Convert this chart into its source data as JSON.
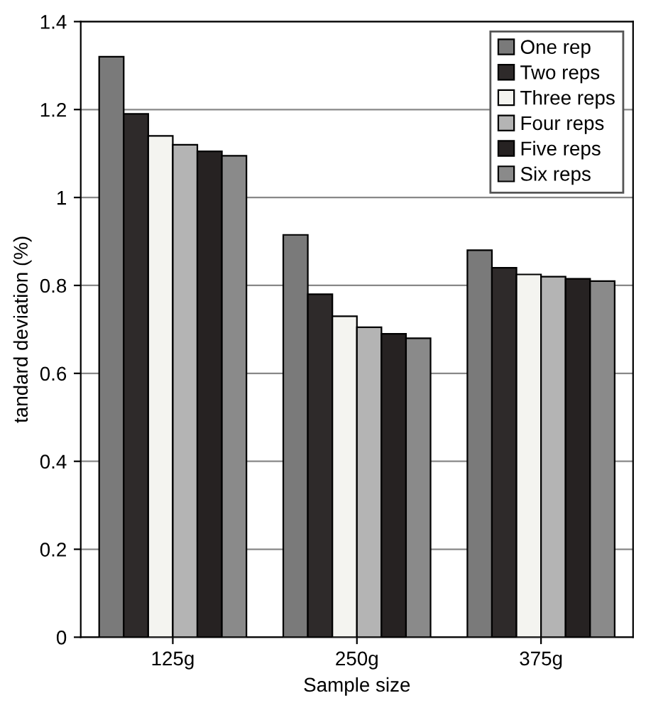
{
  "chart_data": {
    "type": "bar",
    "xlabel": "Sample size",
    "ylabel": "tandard deviation (%)",
    "categories": [
      "125g",
      "250g",
      "375g"
    ],
    "series": [
      {
        "name": "One rep",
        "color": "#7a7a7a",
        "values": [
          1.32,
          0.915,
          0.88
        ]
      },
      {
        "name": "Two reps",
        "color": "#2e2a2a",
        "values": [
          1.19,
          0.78,
          0.84
        ]
      },
      {
        "name": "Three reps",
        "color": "#f4f4f0",
        "values": [
          1.14,
          0.73,
          0.825
        ]
      },
      {
        "name": "Four reps",
        "color": "#b4b4b4",
        "values": [
          1.12,
          0.705,
          0.82
        ]
      },
      {
        "name": "Five reps",
        "color": "#262222",
        "values": [
          1.105,
          0.69,
          0.815
        ]
      },
      {
        "name": "Six reps",
        "color": "#8a8a8a",
        "values": [
          1.095,
          0.68,
          0.81
        ]
      }
    ],
    "ylim": [
      0,
      1.4
    ],
    "yticks": [
      0,
      0.2,
      0.4,
      0.6,
      0.8,
      1,
      1.2,
      1.4
    ],
    "grid": "y",
    "legend": "top right"
  }
}
